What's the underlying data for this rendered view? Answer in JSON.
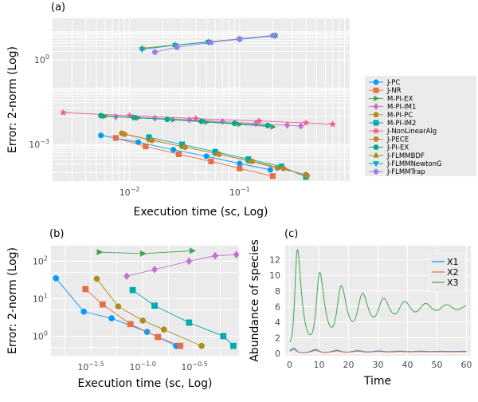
{
  "panels": {
    "a": {
      "label": "(a)",
      "type": "line",
      "xlabel": "Execution time (sc, Log)",
      "ylabel": "Error: 2-norm (Log)",
      "xscale": "log",
      "yscale": "log",
      "xlim": [
        0.002,
        1.0
      ],
      "ylim": [
        5e-05,
        30
      ],
      "xticks": [
        {
          "v": 0.01,
          "base": "10",
          "exp": "−2"
        },
        {
          "v": 0.1,
          "base": "10",
          "exp": "−1"
        }
      ],
      "yticks": [
        {
          "v": 0.001,
          "base": "10",
          "exp": "−3"
        },
        {
          "v": 1,
          "base": "10",
          "exp": "0"
        }
      ],
      "grid": true,
      "legend_position": "right",
      "series": [
        {
          "name": "J-PC",
          "color": "#009AFA",
          "marker": "circle",
          "points": [
            [
              0.0055,
              0.0021
            ],
            [
              0.012,
              0.0012
            ],
            [
              0.025,
              0.00065
            ],
            [
              0.05,
              0.00038
            ],
            [
              0.1,
              0.00021
            ],
            [
              0.19,
              0.000125
            ]
          ]
        },
        {
          "name": "J-NR",
          "color": "#E36F47",
          "marker": "square",
          "points": [
            [
              0.0075,
              0.0017
            ],
            [
              0.014,
              0.00085
            ],
            [
              0.028,
              0.00045
            ],
            [
              0.055,
              0.00025
            ],
            [
              0.1,
              0.00014
            ],
            [
              0.2,
              7.5e-05
            ]
          ]
        },
        {
          "name": "M-PI-EX",
          "color": "#3EA44E",
          "marker": "triangle-right",
          "points": [
            [
              0.006,
              0.01
            ],
            [
              0.012,
              0.0088
            ],
            [
              0.025,
              0.0075
            ],
            [
              0.05,
              0.0062
            ],
            [
              0.1,
              0.0052
            ],
            [
              0.2,
              0.0042
            ]
          ]
        },
        {
          "name": "M-PI-IM1",
          "color": "#C371D2",
          "marker": "diamond",
          "points": [
            [
              0.0075,
              0.0095
            ],
            [
              0.017,
              0.0085
            ],
            [
              0.035,
              0.0075
            ],
            [
              0.07,
              0.0065
            ],
            [
              0.14,
              0.0055
            ],
            [
              0.27,
              0.0048
            ],
            [
              0.36,
              0.0045
            ]
          ]
        },
        {
          "name": "M-PI-PC",
          "color": "#AC8E18",
          "marker": "circle",
          "points": [
            [
              0.0085,
              0.0025
            ],
            [
              0.015,
              0.0015
            ],
            [
              0.03,
              0.00085
            ],
            [
              0.06,
              0.00048
            ],
            [
              0.12,
              0.00026
            ],
            [
              0.22,
              0.000145
            ],
            [
              0.4,
              8.5e-05
            ]
          ]
        },
        {
          "name": "M-PI-IM2",
          "color": "#00A9AD",
          "marker": "square",
          "points": [
            [
              0.015,
              0.0018
            ],
            [
              0.03,
              0.001
            ],
            [
              0.06,
              0.00055
            ],
            [
              0.12,
              0.0003
            ],
            [
              0.24,
              0.000165
            ],
            [
              0.4,
              7e-05
            ]
          ]
        },
        {
          "name": "J-NonLinearAlg",
          "color": "#ED5E93",
          "marker": "star",
          "points": [
            [
              0.0025,
              0.0135
            ],
            [
              0.01,
              0.0105
            ],
            [
              0.04,
              0.0083
            ],
            [
              0.15,
              0.0068
            ],
            [
              0.4,
              0.0058
            ],
            [
              0.7,
              0.0052
            ]
          ]
        },
        {
          "name": "J-PECE",
          "color": "#C68225",
          "marker": "circle",
          "points": [
            [
              0.009,
              0.0023
            ],
            [
              0.016,
              0.0014
            ],
            [
              0.032,
              0.0008
            ],
            [
              0.065,
              0.00045
            ],
            [
              0.13,
              0.00025
            ],
            [
              0.25,
              0.00014
            ],
            [
              0.41,
              7.8e-05
            ]
          ]
        },
        {
          "name": "J-PI-EX",
          "color": "#00A98D",
          "marker": "circle",
          "points": [
            [
              0.0055,
              0.0105
            ],
            [
              0.011,
              0.009
            ],
            [
              0.022,
              0.0078
            ],
            [
              0.045,
              0.0066
            ],
            [
              0.09,
              0.0056
            ],
            [
              0.18,
              0.0047
            ]
          ]
        },
        {
          "name": "J-FLMMBDF",
          "color": "#8E971E",
          "marker": "triangle-up",
          "points": [
            [
              0.013,
              2.6
            ],
            [
              0.026,
              3.4
            ],
            [
              0.052,
              4.4
            ],
            [
              0.1,
              5.6
            ],
            [
              0.21,
              7.5
            ]
          ]
        },
        {
          "name": "J-FLMMNewtonG",
          "color": "#00A8CB",
          "marker": "triangle-down",
          "points": [
            [
              0.013,
              2.4
            ],
            [
              0.026,
              3.3
            ],
            [
              0.052,
              4.3
            ],
            [
              0.1,
              5.4
            ],
            [
              0.21,
              7.2
            ]
          ]
        },
        {
          "name": "J-FLMMTrap",
          "color": "#9B7FE9",
          "marker": "pentagon",
          "points": [
            [
              0.017,
              1.9
            ],
            [
              0.027,
              2.8
            ],
            [
              0.055,
              4.2
            ],
            [
              0.1,
              5.6
            ],
            [
              0.2,
              7.3
            ]
          ]
        }
      ]
    },
    "b": {
      "label": "(b)",
      "type": "line",
      "xlabel": "Execution time (sc, Log)",
      "ylabel": "Error: 2-norm (Log)",
      "xscale": "log",
      "yscale": "log",
      "xlim": [
        0.013,
        0.85
      ],
      "ylim": [
        0.3,
        260
      ],
      "xticks": [
        {
          "v": 0.0316,
          "base": "10",
          "exp": "−1.5"
        },
        {
          "v": 0.1,
          "base": "10",
          "exp": "−1.0"
        },
        {
          "v": 0.316,
          "base": "10",
          "exp": "−0.5"
        }
      ],
      "yticks": [
        {
          "v": 1,
          "base": "10",
          "exp": "0"
        },
        {
          "v": 10,
          "base": "10",
          "exp": "1"
        },
        {
          "v": 100,
          "base": "10",
          "exp": "2"
        }
      ],
      "grid": true,
      "series": [
        {
          "color": "#009AFA",
          "marker": "circle",
          "points": [
            [
              0.0145,
              35
            ],
            [
              0.027,
              4.5
            ],
            [
              0.05,
              3.0
            ],
            [
              0.11,
              1.3
            ],
            [
              0.21,
              0.55
            ]
          ]
        },
        {
          "color": "#E36F47",
          "marker": "square",
          "points": [
            [
              0.028,
              18
            ],
            [
              0.041,
              7
            ],
            [
              0.076,
              2.1
            ],
            [
              0.14,
              0.95
            ],
            [
              0.23,
              0.55
            ]
          ]
        },
        {
          "color": "#AC8E18",
          "marker": "circle",
          "points": [
            [
              0.036,
              34
            ],
            [
              0.058,
              6.2
            ],
            [
              0.1,
              2.6
            ],
            [
              0.16,
              1.5
            ],
            [
              0.37,
              0.55
            ]
          ]
        },
        {
          "color": "#00A9AD",
          "marker": "square",
          "points": [
            [
              0.08,
              17
            ],
            [
              0.13,
              6.5
            ],
            [
              0.28,
              2.3
            ],
            [
              0.6,
              1.0
            ],
            [
              0.75,
              0.55
            ]
          ]
        },
        {
          "color": "#3EA44E",
          "marker": "triangle-right",
          "points": [
            [
              0.038,
              175
            ],
            [
              0.1,
              160
            ],
            [
              0.3,
              190
            ]
          ]
        },
        {
          "color": "#C371D2",
          "marker": "diamond",
          "points": [
            [
              0.07,
              40
            ],
            [
              0.13,
              60
            ],
            [
              0.28,
              100
            ],
            [
              0.5,
              140
            ],
            [
              0.8,
              150
            ]
          ]
        }
      ]
    },
    "c": {
      "label": "(c)",
      "type": "line",
      "xlabel": "Time",
      "ylabel": "Abundance of species",
      "xlim": [
        -1.5,
        61.5
      ],
      "ylim": [
        -0.3,
        13.8
      ],
      "xticks": [
        0,
        10,
        20,
        30,
        40,
        50,
        60
      ],
      "yticks": [
        0,
        2,
        4,
        6,
        8,
        10,
        12
      ],
      "grid": true,
      "legend_position": "top-right",
      "series": [
        {
          "name": "X1",
          "color": "#009AFA"
        },
        {
          "name": "X2",
          "color": "#E36F47"
        },
        {
          "name": "X3",
          "color": "#3EA44E"
        }
      ]
    }
  }
}
